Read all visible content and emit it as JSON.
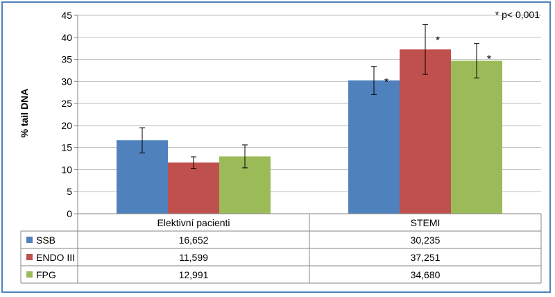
{
  "chart_data": {
    "type": "bar",
    "ylabel": "% tail DNA",
    "ylim": [
      0,
      45
    ],
    "yticks": [
      0,
      5,
      10,
      15,
      20,
      25,
      30,
      35,
      40,
      45
    ],
    "categories": [
      "Elektivní pacienti",
      "STEMI"
    ],
    "series": [
      {
        "name": "SSB",
        "color": "#4f81bd",
        "values": [
          16.652,
          30.235
        ],
        "labels": [
          "16,652",
          "30,235"
        ],
        "err_low": [
          13.8,
          27.0
        ],
        "err_high": [
          19.5,
          33.4
        ],
        "stars": [
          false,
          true
        ]
      },
      {
        "name": "ENDO III",
        "color": "#c0504d",
        "values": [
          11.599,
          37.251
        ],
        "labels": [
          "11,599",
          "37,251"
        ],
        "err_low": [
          10.3,
          31.6
        ],
        "err_high": [
          12.9,
          42.9
        ],
        "stars": [
          false,
          true
        ]
      },
      {
        "name": "FPG",
        "color": "#9bbb59",
        "values": [
          12.991,
          34.68
        ],
        "labels": [
          "12,991",
          "34,680"
        ],
        "err_low": [
          10.4,
          30.8
        ],
        "err_high": [
          15.6,
          38.6
        ],
        "stars": [
          false,
          true
        ]
      }
    ],
    "significance_marker": "*",
    "annotation": "* p< 0,001",
    "grid": true,
    "legend": "data-table"
  }
}
